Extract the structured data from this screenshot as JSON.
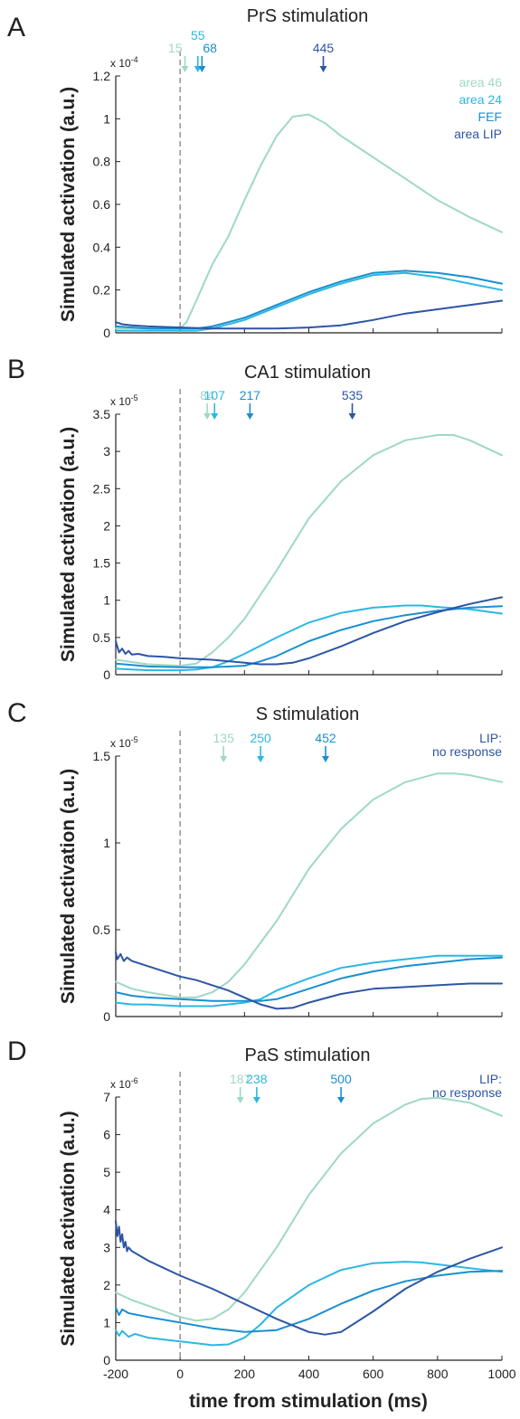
{
  "colors": {
    "area46": "#9fd8c6",
    "area24": "#2bb7e3",
    "fef": "#1a8fd0",
    "lip": "#2d55a4",
    "stim_line": "#9a9a9a",
    "axis": "#222222"
  },
  "legend": [
    "area 46",
    "area 24",
    "FEF",
    "area LIP"
  ],
  "shared_xlabel": "time from stimulation (ms)",
  "chart_data": [
    {
      "panel": "A",
      "type": "line",
      "title": "PrS stimulation",
      "ylabel": "Simulated activation (a.u.)",
      "exponent_base": "x 10",
      "exponent_power": "-4",
      "xlim": [
        -200,
        1000
      ],
      "ylim": [
        0,
        1.2
      ],
      "yticks": [
        "0",
        "0.2",
        "0.4",
        "0.6",
        "0.8",
        "1",
        "1.2"
      ],
      "ytick_values": [
        0,
        0.2,
        0.4,
        0.6,
        0.8,
        1,
        1.2
      ],
      "series": [
        {
          "name": "area 46",
          "x": [
            -200,
            -100,
            0,
            20,
            50,
            100,
            150,
            200,
            250,
            300,
            350,
            400,
            450,
            500,
            600,
            700,
            800,
            900,
            1000
          ],
          "y": [
            0.02,
            0.02,
            0.02,
            0.05,
            0.15,
            0.32,
            0.45,
            0.62,
            0.78,
            0.92,
            1.01,
            1.02,
            0.98,
            0.92,
            0.82,
            0.72,
            0.62,
            0.54,
            0.47
          ]
        },
        {
          "name": "area 24",
          "x": [
            -200,
            -100,
            0,
            50,
            100,
            200,
            300,
            400,
            500,
            600,
            700,
            800,
            900,
            1000
          ],
          "y": [
            0.01,
            0.01,
            0.01,
            0.01,
            0.02,
            0.06,
            0.12,
            0.18,
            0.23,
            0.27,
            0.28,
            0.26,
            0.23,
            0.2
          ]
        },
        {
          "name": "FEF",
          "x": [
            -200,
            -100,
            0,
            50,
            100,
            200,
            300,
            400,
            500,
            600,
            700,
            800,
            900,
            1000
          ],
          "y": [
            0.03,
            0.02,
            0.02,
            0.02,
            0.03,
            0.07,
            0.13,
            0.19,
            0.24,
            0.28,
            0.29,
            0.28,
            0.26,
            0.23
          ]
        },
        {
          "name": "area LIP",
          "x": [
            -200,
            -180,
            -150,
            -100,
            0,
            100,
            200,
            300,
            400,
            500,
            600,
            700,
            800,
            900,
            1000
          ],
          "y": [
            0.05,
            0.04,
            0.035,
            0.03,
            0.025,
            0.02,
            0.02,
            0.02,
            0.025,
            0.035,
            0.06,
            0.09,
            0.11,
            0.13,
            0.15
          ]
        }
      ],
      "annotations": [
        {
          "label": "15",
          "x": 15,
          "series": "area 46"
        },
        {
          "label": "55",
          "x": 55,
          "series": "area 24"
        },
        {
          "label": "68",
          "x": 68,
          "series": "FEF"
        },
        {
          "label": "445",
          "x": 445,
          "series": "area LIP"
        }
      ],
      "show_legend": true
    },
    {
      "panel": "B",
      "type": "line",
      "title": "CA1 stimulation",
      "ylabel": "Simulated activation (a.u.)",
      "exponent_base": "x 10",
      "exponent_power": "-5",
      "xlim": [
        -200,
        1000
      ],
      "ylim": [
        0,
        3.5
      ],
      "yticks": [
        "0",
        "0.5",
        "1",
        "1.5",
        "2",
        "2.5",
        "3",
        "3.5"
      ],
      "ytick_values": [
        0,
        0.5,
        1,
        1.5,
        2,
        2.5,
        3,
        3.5
      ],
      "series": [
        {
          "name": "area 46",
          "x": [
            -200,
            -150,
            -100,
            0,
            50,
            100,
            150,
            200,
            300,
            400,
            500,
            600,
            700,
            800,
            850,
            900,
            1000
          ],
          "y": [
            0.2,
            0.17,
            0.14,
            0.12,
            0.15,
            0.3,
            0.5,
            0.75,
            1.4,
            2.1,
            2.6,
            2.95,
            3.15,
            3.22,
            3.22,
            3.15,
            2.95
          ]
        },
        {
          "name": "area 24",
          "x": [
            -200,
            -150,
            -100,
            0,
            50,
            100,
            150,
            200,
            300,
            400,
            500,
            600,
            700,
            750,
            800,
            900,
            1000
          ],
          "y": [
            0.08,
            0.07,
            0.06,
            0.06,
            0.07,
            0.1,
            0.18,
            0.28,
            0.5,
            0.7,
            0.83,
            0.9,
            0.93,
            0.93,
            0.91,
            0.88,
            0.82
          ]
        },
        {
          "name": "FEF",
          "x": [
            -200,
            -150,
            -100,
            0,
            100,
            200,
            250,
            300,
            400,
            500,
            600,
            700,
            800,
            900,
            1000
          ],
          "y": [
            0.15,
            0.13,
            0.11,
            0.1,
            0.1,
            0.12,
            0.18,
            0.25,
            0.45,
            0.6,
            0.72,
            0.8,
            0.86,
            0.9,
            0.92
          ]
        },
        {
          "name": "area LIP",
          "x": [
            -200,
            -190,
            -180,
            -170,
            -160,
            -150,
            -130,
            -100,
            -50,
            0,
            100,
            200,
            250,
            300,
            350,
            400,
            500,
            600,
            700,
            800,
            900,
            1000
          ],
          "y": [
            0.45,
            0.3,
            0.35,
            0.28,
            0.32,
            0.27,
            0.28,
            0.25,
            0.24,
            0.22,
            0.2,
            0.16,
            0.14,
            0.14,
            0.16,
            0.22,
            0.38,
            0.56,
            0.72,
            0.84,
            0.95,
            1.04
          ]
        }
      ],
      "annotations": [
        {
          "label": "84",
          "x": 84,
          "series": "area 46"
        },
        {
          "label": "107",
          "x": 107,
          "series": "area 24"
        },
        {
          "label": "217",
          "x": 217,
          "series": "FEF"
        },
        {
          "label": "535",
          "x": 535,
          "series": "area LIP"
        }
      ],
      "show_legend": false
    },
    {
      "panel": "C",
      "type": "line",
      "title": "S stimulation",
      "ylabel": "Simulated activation (a.u.)",
      "exponent_base": "x 10",
      "exponent_power": "-5",
      "xlim": [
        -200,
        1000
      ],
      "ylim": [
        0,
        1.5
      ],
      "yticks": [
        "0",
        "0.5",
        "1",
        "1.5"
      ],
      "ytick_values": [
        0,
        0.5,
        1,
        1.5
      ],
      "series": [
        {
          "name": "area 46",
          "x": [
            -200,
            -150,
            -100,
            0,
            50,
            100,
            150,
            200,
            300,
            400,
            500,
            600,
            700,
            800,
            850,
            900,
            1000
          ],
          "y": [
            0.2,
            0.16,
            0.14,
            0.11,
            0.11,
            0.14,
            0.2,
            0.3,
            0.55,
            0.85,
            1.08,
            1.25,
            1.35,
            1.4,
            1.4,
            1.39,
            1.35
          ]
        },
        {
          "name": "area 24",
          "x": [
            -200,
            -150,
            -100,
            0,
            100,
            200,
            250,
            300,
            400,
            500,
            600,
            700,
            800,
            900,
            1000
          ],
          "y": [
            0.08,
            0.07,
            0.07,
            0.06,
            0.06,
            0.08,
            0.1,
            0.15,
            0.22,
            0.28,
            0.31,
            0.33,
            0.35,
            0.35,
            0.35
          ]
        },
        {
          "name": "FEF",
          "x": [
            -200,
            -150,
            -100,
            0,
            100,
            200,
            250,
            300,
            400,
            500,
            600,
            700,
            800,
            900,
            1000
          ],
          "y": [
            0.14,
            0.12,
            0.11,
            0.1,
            0.09,
            0.09,
            0.09,
            0.1,
            0.16,
            0.22,
            0.26,
            0.29,
            0.31,
            0.33,
            0.34
          ]
        },
        {
          "name": "area LIP",
          "x": [
            -200,
            -195,
            -185,
            -175,
            -165,
            -150,
            -100,
            -50,
            0,
            50,
            100,
            150,
            200,
            250,
            300,
            350,
            400,
            500,
            600,
            700,
            800,
            900,
            1000
          ],
          "y": [
            0.37,
            0.33,
            0.36,
            0.32,
            0.34,
            0.32,
            0.29,
            0.26,
            0.23,
            0.21,
            0.18,
            0.15,
            0.11,
            0.07,
            0.045,
            0.05,
            0.08,
            0.13,
            0.16,
            0.17,
            0.18,
            0.19,
            0.19
          ]
        }
      ],
      "annotations": [
        {
          "label": "135",
          "x": 135,
          "series": "area 46"
        },
        {
          "label": "250",
          "x": 250,
          "series": "area 24"
        },
        {
          "label": "452",
          "x": 452,
          "series": "FEF"
        }
      ],
      "lip_note": [
        "LIP:",
        "no response"
      ],
      "show_legend": false
    },
    {
      "panel": "D",
      "type": "line",
      "title": "PaS stimulation",
      "ylabel": "Simulated activation (a.u.)",
      "exponent_base": "x 10",
      "exponent_power": "-6",
      "xlim": [
        -200,
        1000
      ],
      "ylim": [
        0,
        7
      ],
      "yticks": [
        "0",
        "1",
        "2",
        "3",
        "4",
        "5",
        "6",
        "7"
      ],
      "ytick_values": [
        0,
        1,
        2,
        3,
        4,
        5,
        6,
        7
      ],
      "xticks": [
        "-200",
        "0",
        "200",
        "400",
        "600",
        "800",
        "1000"
      ],
      "xtick_values": [
        -200,
        0,
        200,
        400,
        600,
        800,
        1000
      ],
      "series": [
        {
          "name": "area 46",
          "x": [
            -200,
            -150,
            -100,
            -50,
            0,
            50,
            100,
            150,
            200,
            300,
            400,
            500,
            600,
            700,
            750,
            800,
            900,
            1000
          ],
          "y": [
            1.8,
            1.6,
            1.45,
            1.3,
            1.15,
            1.05,
            1.1,
            1.35,
            1.8,
            3.0,
            4.4,
            5.5,
            6.3,
            6.8,
            6.95,
            6.98,
            6.85,
            6.5
          ]
        },
        {
          "name": "area 24",
          "x": [
            -200,
            -190,
            -180,
            -160,
            -140,
            -100,
            0,
            50,
            100,
            150,
            200,
            250,
            300,
            400,
            500,
            600,
            700,
            750,
            800,
            900,
            1000
          ],
          "y": [
            0.8,
            0.65,
            0.78,
            0.62,
            0.7,
            0.6,
            0.5,
            0.45,
            0.4,
            0.42,
            0.6,
            0.95,
            1.4,
            2.0,
            2.4,
            2.58,
            2.62,
            2.6,
            2.55,
            2.45,
            2.35
          ]
        },
        {
          "name": "FEF",
          "x": [
            -200,
            -190,
            -180,
            -160,
            -100,
            0,
            100,
            200,
            300,
            400,
            500,
            600,
            700,
            800,
            900,
            1000
          ],
          "y": [
            1.4,
            1.2,
            1.35,
            1.25,
            1.15,
            1.0,
            0.85,
            0.75,
            0.8,
            1.1,
            1.5,
            1.85,
            2.1,
            2.25,
            2.35,
            2.38
          ]
        },
        {
          "name": "area LIP",
          "x": [
            -200,
            -195,
            -190,
            -185,
            -180,
            -175,
            -170,
            -165,
            -160,
            -150,
            -100,
            -50,
            0,
            100,
            200,
            300,
            400,
            450,
            500,
            600,
            700,
            800,
            900,
            1000
          ],
          "y": [
            3.7,
            3.3,
            3.55,
            3.15,
            3.35,
            3.0,
            3.15,
            2.9,
            3.0,
            2.9,
            2.65,
            2.45,
            2.25,
            1.9,
            1.5,
            1.1,
            0.75,
            0.68,
            0.75,
            1.3,
            1.9,
            2.35,
            2.7,
            3.0
          ]
        }
      ],
      "annotations": [
        {
          "label": "187",
          "x": 187,
          "series": "area 46"
        },
        {
          "label": "238",
          "x": 238,
          "series": "area 24"
        },
        {
          "label": "500",
          "x": 500,
          "series": "FEF"
        }
      ],
      "lip_note": [
        "LIP:",
        "no response"
      ],
      "show_legend": false
    }
  ]
}
